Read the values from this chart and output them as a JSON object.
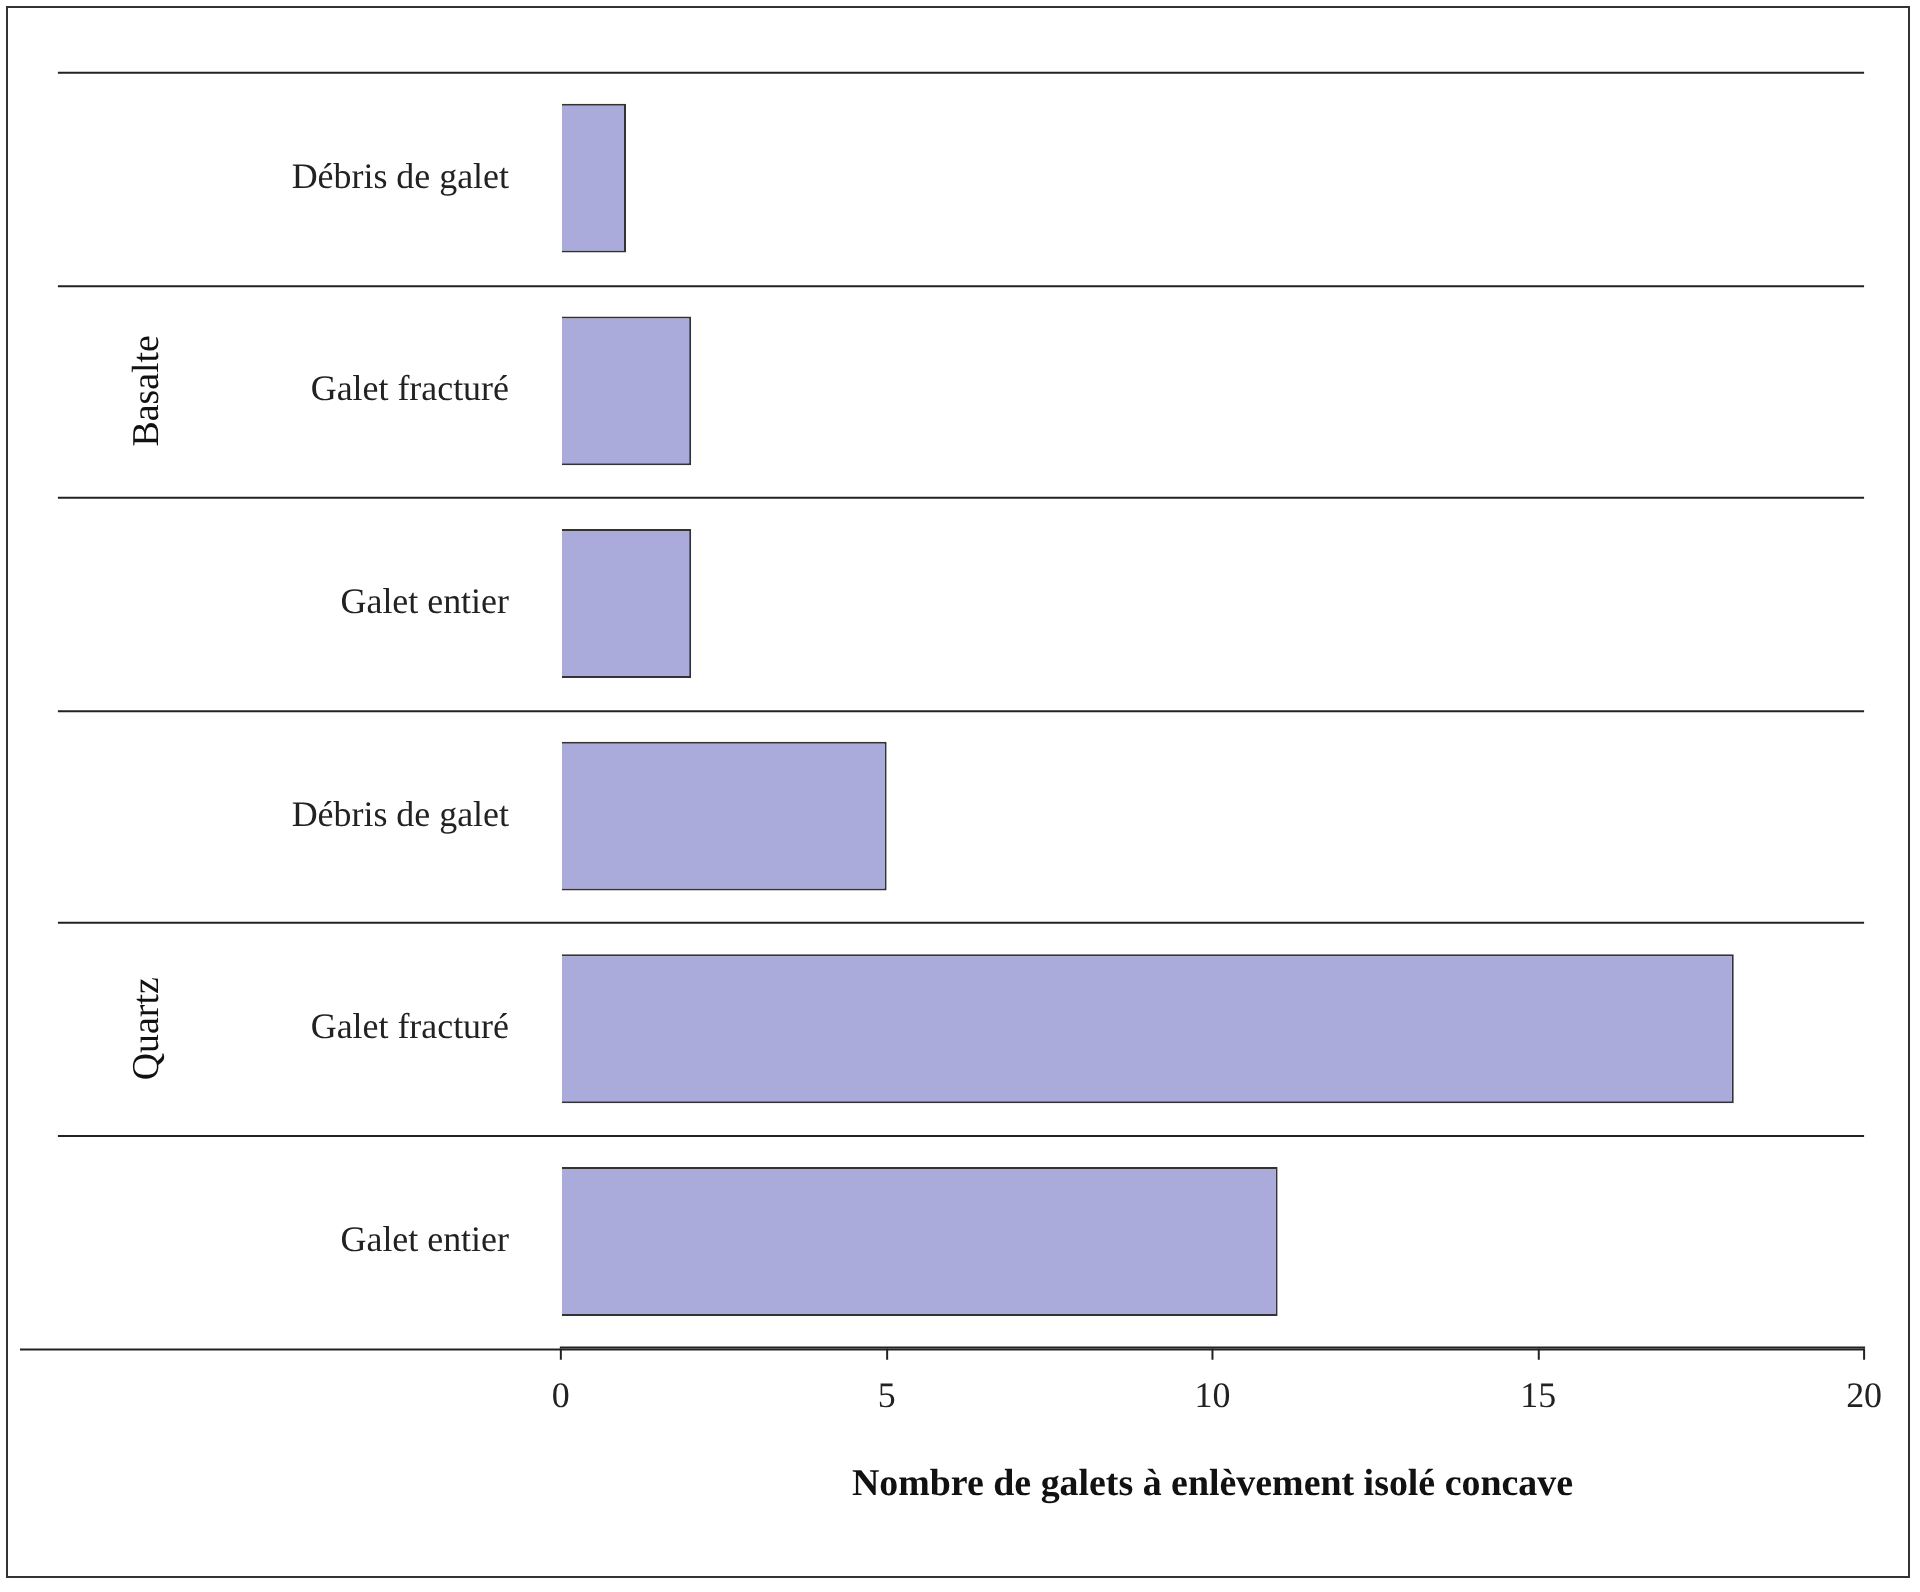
{
  "chart_data": {
    "type": "bar",
    "orientation": "horizontal",
    "xlabel": "Nombre de galets à enlèvement isolé concave",
    "categories": [
      "Débris de galet",
      "Galet fracturé",
      "Galet entier",
      "Débris de galet",
      "Galet fracturé",
      "Galet entier"
    ],
    "values": [
      1,
      2,
      2,
      5,
      18,
      11
    ],
    "color": "#aaaadb",
    "xlim": [
      0,
      20
    ],
    "xticks": [
      0,
      5,
      10,
      15,
      20
    ],
    "annotations": [
      "Basalte",
      "Quartz"
    ],
    "legend": false
  }
}
